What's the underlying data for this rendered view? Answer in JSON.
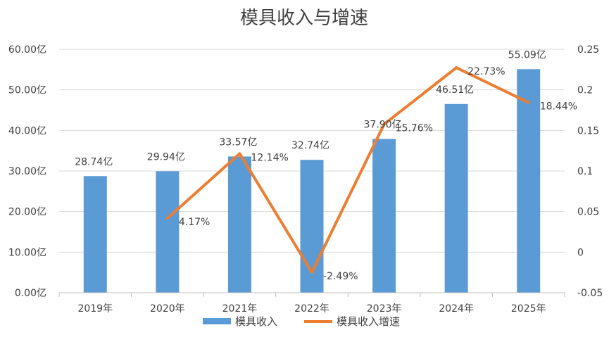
{
  "chart_data": {
    "type": "bar",
    "title": "模具收入与增速",
    "categories": [
      "2019年",
      "2020年",
      "2021年",
      "2022年",
      "2023年",
      "2024年",
      "2025年"
    ],
    "series": [
      {
        "name": "模具收入",
        "type": "bar",
        "axis": "left",
        "values": [
          28.74,
          29.94,
          33.57,
          32.74,
          37.9,
          46.51,
          55.09
        ],
        "labels": [
          "28.74亿",
          "29.94亿",
          "33.57亿",
          "32.74亿",
          "37.90亿",
          "46.51亿",
          "55.09亿"
        ]
      },
      {
        "name": "模具收入增速",
        "type": "line",
        "axis": "right",
        "values": [
          null,
          0.0417,
          0.1214,
          -0.0249,
          0.1576,
          0.2273,
          0.1844
        ],
        "labels": [
          "",
          "4.17%",
          "12.14%",
          "-2.49%",
          "15.76%",
          "22.73%",
          "18.44%"
        ]
      }
    ],
    "y_left": {
      "range": [
        0,
        60
      ],
      "ticks": [
        0,
        10,
        20,
        30,
        40,
        50,
        60
      ],
      "tick_labels": [
        "0.00亿",
        "10.00亿",
        "20.00亿",
        "30.00亿",
        "40.00亿",
        "50.00亿",
        "60.00亿"
      ]
    },
    "y_right": {
      "range": [
        -0.05,
        0.25
      ],
      "ticks": [
        -0.05,
        0,
        0.05,
        0.1,
        0.15,
        0.2,
        0.25
      ],
      "tick_labels": [
        "-0.05",
        "0",
        "0.05",
        "0.1",
        "0.15",
        "0.2",
        "0.25"
      ]
    },
    "grid": true,
    "legend_position": "bottom",
    "colors": {
      "bar": "#5b9bd5",
      "line": "#ed7d31"
    }
  }
}
